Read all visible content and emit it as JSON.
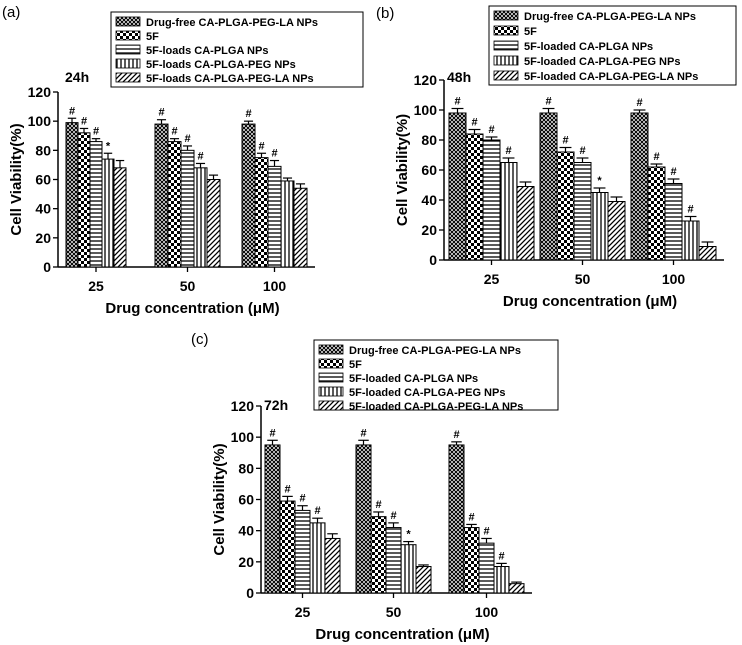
{
  "figure": {
    "series_names": [
      "Drug-free CA-PLGA-PEG-LA NPs",
      "5F",
      "5F-loaded CA-PLGA NPs",
      "5F-loaded CA-PLGA-PEG NPs",
      "5F-loaded CA-PLGA-PEG-LA NPs"
    ],
    "pattern_names": [
      "crosshatch",
      "checker",
      "horizontal-lines",
      "vertical-lines",
      "diagonal-lines"
    ]
  },
  "chart_data": [
    {
      "type": "bar",
      "panel_label": "(a)",
      "title": "24h",
      "xlabel": "Drug concentration (μM)",
      "ylabel": "Cell Viability(%)",
      "categories": [
        "25",
        "50",
        "100"
      ],
      "ylim": [
        0,
        120
      ],
      "yticks": [
        0,
        20,
        40,
        60,
        80,
        100,
        120
      ],
      "legend": [
        "Drug-free CA-PLGA-PEG-LA NPs",
        "5F",
        "5F-loads CA-PLGA NPs",
        "5F-loads CA-PLGA-PEG NPs",
        "5F-loads CA-PLGA-PEG-LA NPs"
      ],
      "series": [
        {
          "name": "Drug-free CA-PLGA-PEG-LA NPs",
          "values": [
            99,
            98,
            98
          ],
          "errors": [
            3,
            3,
            2
          ],
          "marks": [
            "#",
            "#",
            "#"
          ]
        },
        {
          "name": "5F",
          "values": [
            92,
            86,
            75
          ],
          "errors": [
            3,
            2,
            3
          ],
          "marks": [
            "#",
            "#",
            "#"
          ]
        },
        {
          "name": "5F-loads CA-PLGA NPs",
          "values": [
            86,
            80,
            69
          ],
          "errors": [
            2,
            3,
            4
          ],
          "marks": [
            "#",
            "#",
            "#"
          ]
        },
        {
          "name": "5F-loads CA-PLGA-PEG NPs",
          "values": [
            74,
            68,
            59
          ],
          "errors": [
            4,
            3,
            2
          ],
          "marks": [
            "*",
            "#",
            ""
          ]
        },
        {
          "name": "5F-loads CA-PLGA-PEG-LA NPs",
          "values": [
            68,
            60,
            54
          ],
          "errors": [
            5,
            3,
            3
          ],
          "marks": [
            "",
            "",
            ""
          ]
        }
      ]
    },
    {
      "type": "bar",
      "panel_label": "(b)",
      "title": "48h",
      "xlabel": "Drug concentration (μM)",
      "ylabel": "Cell Viability(%)",
      "categories": [
        "25",
        "50",
        "100"
      ],
      "ylim": [
        0,
        120
      ],
      "yticks": [
        0,
        20,
        40,
        60,
        80,
        100,
        120
      ],
      "legend": [
        "Drug-free CA-PLGA-PEG-LA NPs",
        "5F",
        "5F-loaded CA-PLGA NPs",
        "5F-loaded CA-PLGA-PEG NPs",
        "5F-loaded CA-PLGA-PEG-LA NPs"
      ],
      "series": [
        {
          "name": "Drug-free CA-PLGA-PEG-LA NPs",
          "values": [
            98,
            98,
            98
          ],
          "errors": [
            3,
            3,
            2
          ],
          "marks": [
            "#",
            "#",
            "#"
          ]
        },
        {
          "name": "5F",
          "values": [
            84,
            72,
            62
          ],
          "errors": [
            3,
            3,
            2
          ],
          "marks": [
            "#",
            "#",
            "#"
          ]
        },
        {
          "name": "5F-loaded CA-PLGA NPs",
          "values": [
            80,
            65,
            51
          ],
          "errors": [
            2,
            3,
            3
          ],
          "marks": [
            "#",
            "#",
            "#"
          ]
        },
        {
          "name": "5F-loaded CA-PLGA-PEG NPs",
          "values": [
            65,
            45,
            26
          ],
          "errors": [
            3,
            3,
            3
          ],
          "marks": [
            "#",
            "*",
            "#"
          ]
        },
        {
          "name": "5F-loaded CA-PLGA-PEG-LA NPs",
          "values": [
            49,
            39,
            9
          ],
          "errors": [
            3,
            3,
            3
          ],
          "marks": [
            "",
            "",
            ""
          ]
        }
      ]
    },
    {
      "type": "bar",
      "panel_label": "(c)",
      "title": "72h",
      "xlabel": "Drug concentration (μM)",
      "ylabel": "Cell Viability(%)",
      "categories": [
        "25",
        "50",
        "100"
      ],
      "ylim": [
        0,
        120
      ],
      "yticks": [
        0,
        20,
        40,
        60,
        80,
        100,
        120
      ],
      "legend": [
        "Drug-free CA-PLGA-PEG-LA NPs",
        "5F",
        "5F-loaded CA-PLGA NPs",
        "5F-loaded CA-PLGA-PEG NPs",
        "5F-loaded CA-PLGA-PEG-LA NPs"
      ],
      "series": [
        {
          "name": "Drug-free CA-PLGA-PEG-LA NPs",
          "values": [
            95,
            95,
            95
          ],
          "errors": [
            3,
            3,
            2
          ],
          "marks": [
            "#",
            "#",
            "#"
          ]
        },
        {
          "name": "5F",
          "values": [
            59,
            49,
            42
          ],
          "errors": [
            3,
            3,
            2
          ],
          "marks": [
            "#",
            "#",
            "#"
          ]
        },
        {
          "name": "5F-loaded CA-PLGA NPs",
          "values": [
            53,
            42,
            32
          ],
          "errors": [
            3,
            3,
            3
          ],
          "marks": [
            "#",
            "#",
            "#"
          ]
        },
        {
          "name": "5F-loaded CA-PLGA-PEG NPs",
          "values": [
            45,
            31,
            17
          ],
          "errors": [
            3,
            2,
            2
          ],
          "marks": [
            "#",
            "*",
            "#"
          ]
        },
        {
          "name": "5F-loaded CA-PLGA-PEG-LA NPs",
          "values": [
            35,
            17,
            6
          ],
          "errors": [
            3,
            1,
            1
          ],
          "marks": [
            "",
            "",
            ""
          ]
        }
      ]
    }
  ]
}
